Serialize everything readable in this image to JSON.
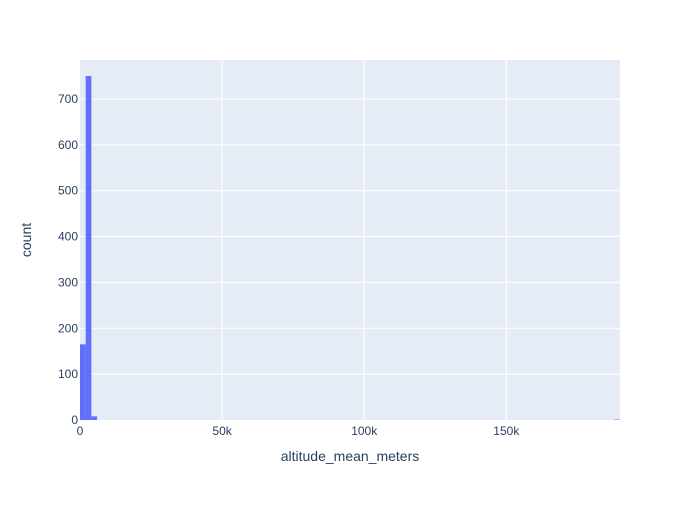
{
  "chart_data": {
    "type": "bar",
    "subtype": "histogram",
    "xlabel": "altitude_mean_meters",
    "ylabel": "count",
    "xlim": [
      0,
      190000
    ],
    "ylim": [
      0,
      785
    ],
    "x_ticks": [
      0,
      50000,
      100000,
      150000
    ],
    "x_tick_labels": [
      "0",
      "50k",
      "100k",
      "150k"
    ],
    "y_ticks": [
      0,
      100,
      200,
      300,
      400,
      500,
      600,
      700
    ],
    "y_tick_labels": [
      "0",
      "100",
      "200",
      "300",
      "400",
      "500",
      "600",
      "700"
    ],
    "bins": [
      {
        "x0": 0,
        "x1": 2000,
        "count": 165
      },
      {
        "x0": 2000,
        "x1": 4000,
        "count": 750
      },
      {
        "x0": 4000,
        "x1": 6000,
        "count": 8
      },
      {
        "x0": 188000,
        "x1": 190000,
        "count": 1
      }
    ],
    "grid": true,
    "colors": {
      "bar": "#636efa",
      "plot_background": "#e5ecf6",
      "grid": "#ffffff",
      "text": "#2a3f5f"
    }
  }
}
